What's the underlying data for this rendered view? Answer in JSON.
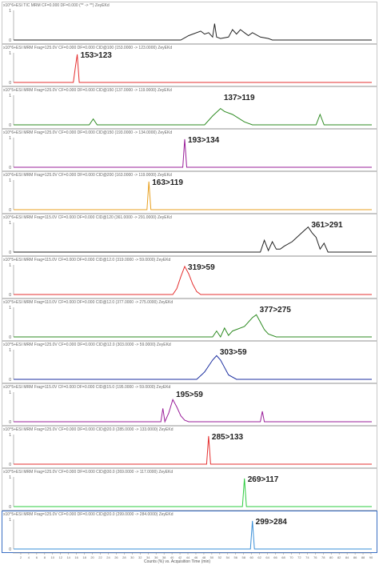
{
  "chart_data": {
    "type": "line",
    "xlabel": "Counts (%) vs. Acquisition Time (min)",
    "xlim": [
      0,
      90
    ],
    "panels": [
      {
        "header": "+ESI TIC MRM CF=0.000 DF=0.000 (** -> **) ZeyEKd",
        "scale": "x10^6",
        "label": "",
        "color": "#222222",
        "ylim": [
          0,
          1
        ],
        "yticks": [
          "0",
          "1"
        ],
        "series": {
          "x": [
            0,
            42,
            44,
            47,
            48,
            49,
            50,
            50.5,
            51,
            52,
            54,
            55,
            56,
            57,
            58,
            59,
            60,
            62,
            64,
            65,
            90
          ],
          "y": [
            0,
            0,
            0.15,
            0.3,
            0.2,
            0.25,
            0.1,
            0.55,
            0.1,
            0.05,
            0.1,
            0.35,
            0.2,
            0.35,
            0.25,
            0.15,
            0.25,
            0.1,
            0.05,
            0,
            0
          ]
        }
      },
      {
        "header": "+ESI MRM Frag=125.0V CF=0.000 DF=0.000 CID@100 (153.0000 -> 123.0000) ZeyEKd",
        "scale": "x10^6",
        "label": "153>123",
        "color": "#e53030",
        "ylim": [
          0,
          1
        ],
        "yticks": [
          "0",
          "1"
        ],
        "series": {
          "x": [
            0,
            15,
            15.5,
            16,
            16.5,
            90
          ],
          "y": [
            0,
            0,
            0.5,
            0.95,
            0,
            0
          ]
        }
      },
      {
        "header": "+ESI MRM Frag=125.0V CF=0.000 DF=0.000 CID@150 (137.0000 -> 119.0000) ZeyEKd",
        "scale": "x10^5",
        "label": "137>119",
        "color": "#2e8b22",
        "ylim": [
          0,
          1
        ],
        "yticks": [
          "0",
          "1"
        ],
        "series": {
          "x": [
            0,
            19,
            20,
            21,
            48,
            50,
            52,
            53,
            55,
            58,
            60,
            76,
            77,
            78,
            90
          ],
          "y": [
            0,
            0,
            0.2,
            0,
            0,
            0.3,
            0.55,
            0.45,
            0.35,
            0.1,
            0,
            0,
            0.35,
            0,
            0
          ]
        }
      },
      {
        "header": "+ESI MRM Frag=125.0V CF=0.000 DF=0.000 CID@150 (193.0000 -> 134.0000) ZeyEKd",
        "scale": "x10^6",
        "label": "193>134",
        "color": "#9a1f9a",
        "ylim": [
          0,
          1
        ],
        "yticks": [
          "0",
          "1"
        ],
        "series": {
          "x": [
            0,
            42.5,
            43,
            43.5,
            90
          ],
          "y": [
            0,
            0,
            0.95,
            0,
            0
          ]
        }
      },
      {
        "header": "+ESI MRM Frag=125.0V CF=0.000 DF=0.000 CID@200 (163.0000 -> 119.0000) ZeyEKd",
        "scale": "x10^6",
        "label": "163>119",
        "color": "#e8a020",
        "ylim": [
          0,
          1
        ],
        "yticks": [
          "0",
          "1"
        ],
        "series": {
          "x": [
            0,
            33.5,
            34,
            34.5,
            90
          ],
          "y": [
            0,
            0,
            0.95,
            0,
            0
          ]
        }
      },
      {
        "header": "+ESI MRM Frag=115.0V CF=0.000 DF=0.000 CID@120 (361.0000 -> 291.0000) ZeyEKd",
        "scale": "x10^6",
        "label": "361>291",
        "color": "#222222",
        "ylim": [
          0,
          1
        ],
        "yticks": [
          "0",
          "1"
        ],
        "series": {
          "x": [
            0,
            62,
            63,
            64,
            65,
            66,
            67,
            68,
            70,
            72,
            74,
            75,
            76,
            77,
            78,
            79,
            80,
            90
          ],
          "y": [
            0,
            0,
            0.4,
            0.05,
            0.35,
            0.1,
            0.1,
            0.2,
            0.35,
            0.6,
            0.85,
            0.65,
            0.5,
            0.1,
            0.3,
            0,
            0,
            0
          ]
        }
      },
      {
        "header": "+ESI MRM Frag=115.0V CF=0.000 DF=0.000 CID@12.0 (319.0000 -> 59.0000) ZeyEKd",
        "scale": "x10^5",
        "label": "319>59",
        "color": "#e53030",
        "ylim": [
          0,
          1
        ],
        "yticks": [
          "0",
          "1"
        ],
        "series": {
          "x": [
            0,
            40,
            41,
            42,
            43,
            44,
            45,
            46,
            47,
            90
          ],
          "y": [
            0,
            0,
            0.2,
            0.6,
            0.95,
            0.7,
            0.35,
            0.1,
            0,
            0
          ]
        }
      },
      {
        "header": "+ESI MRM Frag=110.0V CF=0.000 DF=0.000 CID@12.0 (377.0000 -> 275.0000) ZeyEKd",
        "scale": "x10^5",
        "label": "377>275",
        "color": "#2e8b22",
        "ylim": [
          0,
          1
        ],
        "yticks": [
          "0",
          "1"
        ],
        "series": {
          "x": [
            0,
            50,
            51,
            52,
            53,
            54,
            55,
            58,
            60,
            61,
            62,
            63,
            64,
            66,
            90
          ],
          "y": [
            0,
            0,
            0.2,
            0,
            0.3,
            0.05,
            0.2,
            0.35,
            0.65,
            0.75,
            0.5,
            0.25,
            0.1,
            0,
            0
          ]
        }
      },
      {
        "header": "+ESI MRM Frag=125.0V CF=0.000 DF=0.000 CID@12.0 (303.0000 -> 59.0000) ZeyEKd",
        "scale": "x10^5",
        "label": "303>59",
        "color": "#1c2fa0",
        "ylim": [
          0,
          1
        ],
        "yticks": [
          "0",
          "1"
        ],
        "series": {
          "x": [
            0,
            46,
            48,
            50,
            51,
            52,
            53,
            54,
            56,
            90
          ],
          "y": [
            0,
            0,
            0.25,
            0.65,
            0.8,
            0.65,
            0.4,
            0.15,
            0,
            0
          ]
        }
      },
      {
        "header": "+ESI MRM Frag=115.0V CF=0.000 DF=0.000 CID@15.0 (195.0000 -> 59.0000) ZeyEKd",
        "scale": "x10^5",
        "label": "195>59",
        "color": "#9a1f9a",
        "ylim": [
          0,
          1
        ],
        "yticks": [
          "0",
          "1"
        ],
        "series": {
          "x": [
            0,
            37,
            37.5,
            38,
            39,
            40,
            41,
            42,
            43,
            44,
            62,
            62.5,
            63,
            90
          ],
          "y": [
            0,
            0,
            0.45,
            0,
            0.3,
            0.75,
            0.5,
            0.2,
            0.05,
            0,
            0,
            0.35,
            0,
            0
          ]
        }
      },
      {
        "header": "+ESI MRM Frag=125.0V CF=0.000 DF=0.000 CID@20.0 (285.0000 -> 133.0000) ZeyEKd",
        "scale": "x10^5",
        "label": "285>133",
        "color": "#e53030",
        "ylim": [
          0,
          1
        ],
        "yticks": [
          "0",
          "1"
        ],
        "series": {
          "x": [
            0,
            48.5,
            49,
            49.5,
            90
          ],
          "y": [
            0,
            0,
            0.95,
            0,
            0
          ]
        }
      },
      {
        "header": "+ESI MRM Frag=125.0V CF=0.000 DF=0.000 CID@30.0 (269.0000 -> 117.0000) ZeyEKd",
        "scale": "x10^5",
        "label": "269>117",
        "color": "#2ecc40",
        "ylim": [
          0,
          1
        ],
        "yticks": [
          "0",
          "1"
        ],
        "series": {
          "x": [
            0,
            57.5,
            58,
            58.5,
            90
          ],
          "y": [
            0,
            0,
            0.95,
            0,
            0
          ]
        }
      },
      {
        "header": "+ESI MRM Frag=125.0V CF=0.000 DF=0.000 CID@20.0 (299.0000 -> 284.0000) ZeyEKd",
        "scale": "x10^5",
        "label": "299>284",
        "color": "#3a8fd8",
        "ylim": [
          0,
          1
        ],
        "yticks": [
          "0",
          "1"
        ],
        "series": {
          "x": [
            0,
            59.5,
            60,
            60.5,
            90
          ],
          "y": [
            0,
            0,
            0.95,
            0,
            0
          ]
        }
      }
    ]
  }
}
